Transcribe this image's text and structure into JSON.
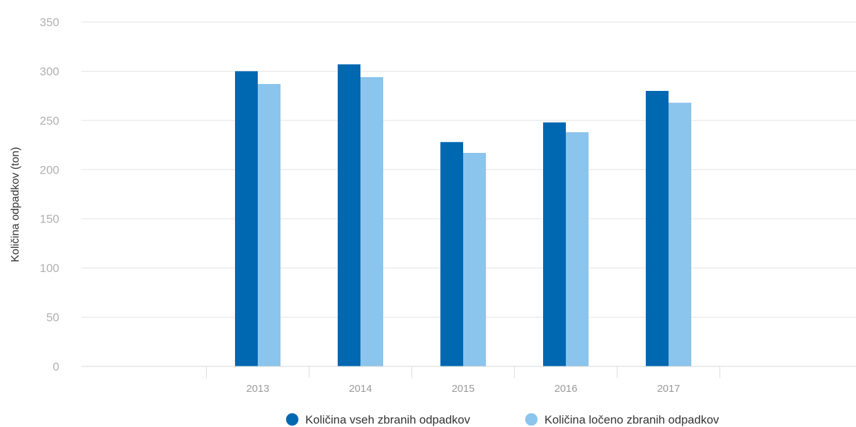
{
  "chart_data": {
    "type": "bar",
    "title": "",
    "xlabel": "",
    "ylabel": "Količina odpadkov (ton)",
    "categories": [
      "2013",
      "2014",
      "2015",
      "2016",
      "2017"
    ],
    "series": [
      {
        "name": "Količina vseh zbranih odpadkov",
        "values": [
          300,
          307,
          228,
          248,
          280
        ]
      },
      {
        "name": "Količina ločeno zbranih odpadkov",
        "values": [
          287,
          294,
          217,
          238,
          268
        ]
      }
    ],
    "ylim": [
      0,
      350
    ],
    "yticks": [
      0,
      50,
      100,
      150,
      200,
      250,
      300,
      350
    ],
    "grid": true,
    "legend": "bottom-center",
    "colors": [
      "#0067b1",
      "#8bc4ec"
    ],
    "grid_color": "#e3e3e3"
  }
}
